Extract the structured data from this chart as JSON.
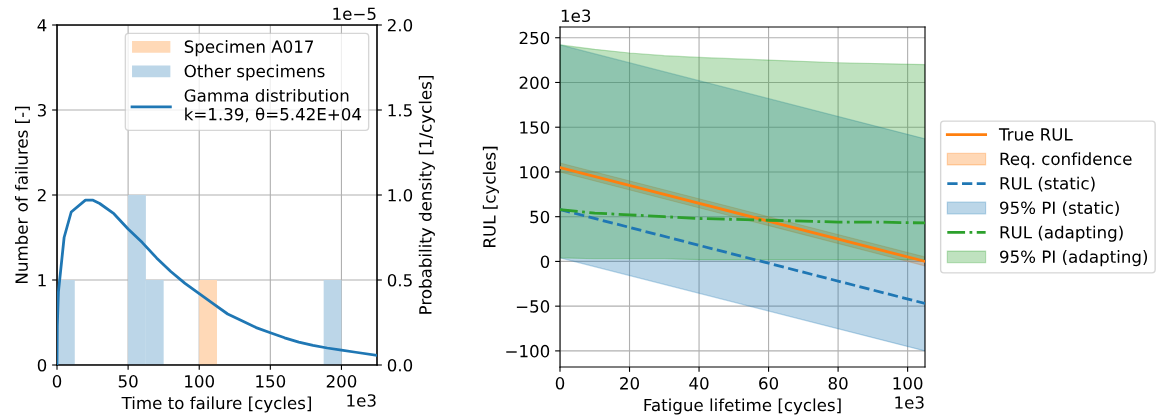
{
  "chart_data": [
    {
      "type": "histogram",
      "xlabel": "Time to failure [cycles]",
      "ylabel": "Number of failures [-]",
      "y2label": "Probability density [1/cycles]",
      "bins": [
        0,
        12.5,
        25,
        37.5,
        50,
        62.5,
        75,
        87.5,
        100,
        112.5,
        125,
        137.5,
        150,
        162.5,
        175,
        187.5,
        200,
        212.5,
        225
      ],
      "series": [
        {
          "name": "Specimen A017",
          "color": "#ffd9b7",
          "values": [
            0,
            0,
            0,
            0,
            0,
            0,
            0,
            0,
            1,
            0,
            0,
            0,
            0,
            0,
            0,
            0,
            0,
            0
          ]
        },
        {
          "name": "Other specimens",
          "color": "#bcd6e8",
          "values": [
            1,
            0,
            0,
            0,
            2,
            1,
            0,
            0,
            0,
            0,
            0,
            0,
            0,
            0,
            0,
            1,
            0,
            0
          ]
        },
        {
          "name": "Gamma distribution\nk=1.39, θ=5.42E+04",
          "type": "line",
          "axis": "y2",
          "color": "#1f77b4",
          "x": [
            0,
            0.2,
            1,
            5,
            10,
            20,
            25,
            30,
            40,
            50,
            60,
            70,
            80,
            90,
            100,
            110,
            120,
            130,
            140,
            150,
            160,
            170,
            180,
            190,
            200,
            210,
            225
          ],
          "values": [
            0,
            0.23,
            0.43,
            0.75,
            0.9,
            0.97,
            0.97,
            0.95,
            0.89,
            0.8,
            0.72,
            0.63,
            0.55,
            0.48,
            0.42,
            0.36,
            0.3,
            0.26,
            0.22,
            0.19,
            0.16,
            0.135,
            0.115,
            0.1,
            0.087,
            0.075,
            0.057
          ]
        }
      ],
      "xlim": [
        0,
        225
      ],
      "xticks": [
        0,
        50,
        100,
        150,
        200
      ],
      "ylim": [
        0,
        4
      ],
      "yticks": [
        0,
        1,
        2,
        3,
        4
      ],
      "y2lim": [
        0,
        2
      ],
      "y2ticks": [
        {
          "value": 0,
          "label": "0.0"
        },
        {
          "value": 0.5,
          "label": "0.5"
        },
        {
          "value": 1,
          "label": "1.0"
        },
        {
          "value": 1.5,
          "label": "1.5"
        },
        {
          "value": 2,
          "label": "2.0"
        }
      ],
      "annotations": [
        "1e3",
        "1e−5"
      ],
      "grid": true,
      "legend": "top right"
    },
    {
      "type": "line",
      "xlabel": "Fatigue lifetime [cycles]",
      "ylabel": "RUL [cycles]",
      "series": [
        {
          "name": "True RUL",
          "color": "#ff7f0e",
          "x": [
            0,
            105
          ],
          "values": [
            105,
            0
          ]
        },
        {
          "name": "Req. confidence",
          "type": "area",
          "color": "#ff7f0e",
          "x": [
            0,
            105
          ],
          "values": [
            null,
            null
          ],
          "lower": [
            100,
            -5
          ],
          "upper": [
            110,
            5
          ]
        },
        {
          "name": "RUL (static)",
          "color": "#1f77b4",
          "line_style": "dashed",
          "x": [
            0,
            105
          ],
          "values": [
            58,
            -47
          ]
        },
        {
          "name": "95% PI (static)",
          "type": "area",
          "color": "#1f77b4",
          "x": [
            0,
            105
          ],
          "values": [
            null,
            null
          ],
          "lower": [
            4,
            -100
          ],
          "upper": [
            242,
            137
          ]
        },
        {
          "name": "RUL (adapting)",
          "color": "#2ca02c",
          "line_style": "dashdot",
          "x": [
            0,
            10,
            20,
            30,
            40,
            50,
            60,
            70,
            80,
            90,
            105
          ],
          "values": [
            58,
            54,
            52,
            50,
            48,
            47,
            46,
            45,
            44,
            44,
            43
          ]
        },
        {
          "name": "95% PI (adapting)",
          "type": "area",
          "color": "#2ca02c",
          "x": [
            0,
            10,
            20,
            30,
            40,
            60,
            80,
            105
          ],
          "values": [
            null,
            null,
            null,
            null,
            null,
            null,
            null,
            null
          ],
          "lower": [
            4,
            3,
            3,
            3,
            2,
            2,
            2,
            2
          ],
          "upper": [
            242,
            237,
            233,
            230,
            228,
            225,
            222,
            220
          ]
        }
      ],
      "xlim": [
        0,
        105
      ],
      "xticks": [
        0,
        20,
        40,
        60,
        80,
        100
      ],
      "ylim": [
        -118,
        262
      ],
      "yticks": [
        {
          "value": -100,
          "label": "−100"
        },
        {
          "value": -50,
          "label": "−50"
        },
        0,
        50,
        100,
        150,
        200,
        250
      ],
      "annotations": [
        "1e3",
        "1e3"
      ],
      "grid": true,
      "legend": "right"
    }
  ]
}
